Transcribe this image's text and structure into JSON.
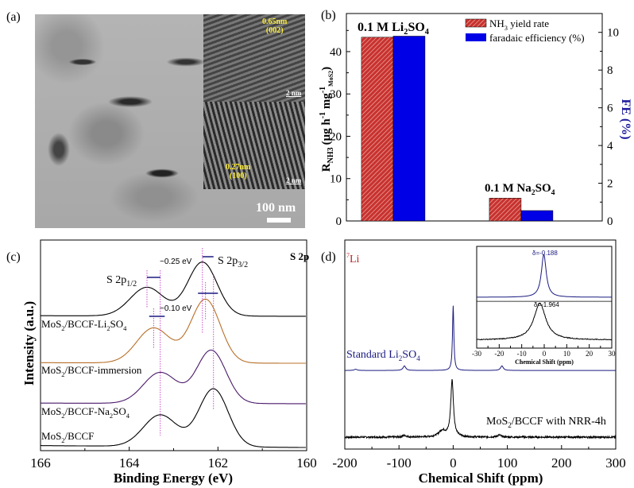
{
  "panel_labels": {
    "a": "(a)",
    "b": "(b)",
    "c": "(c)",
    "d": "(d)"
  },
  "panel_a": {
    "inset_top_spacing": "0.65nm",
    "inset_top_plane": "(002)",
    "inset_top_scale": "2 nm",
    "inset_bottom_spacing": "0.27nm",
    "inset_bottom_plane": "(100)",
    "inset_bottom_scale": "2 nm",
    "scale_bar": "100 nm"
  },
  "chart_data": [
    {
      "type": "bar",
      "panel": "b",
      "categories": [
        "0.1 M Li2SO4",
        "0.1 M Na2SO4"
      ],
      "series": [
        {
          "name": "NH3 yield rate",
          "axis": "left",
          "color": "#c8322f",
          "hatch": true,
          "values": [
            43.4,
            5.4
          ]
        },
        {
          "name": "faradaic efficiency (%)",
          "axis": "right",
          "color": "#0000e6",
          "values": [
            9.8,
            0.55
          ]
        }
      ],
      "ylim": [
        0,
        49
      ],
      "ylim_right": [
        0,
        11
      ],
      "yticks": [
        0,
        10,
        20,
        30,
        40
      ],
      "yticks_right": [
        0,
        2,
        4,
        6,
        8,
        10
      ],
      "ylabel": {
        "main": "R",
        "sub": "NH3",
        "unit": "(μg h",
        "sup1": "-1",
        "mid": " mg",
        "sup2": "-1",
        "sub2": "MoS2",
        "end": ")"
      },
      "ylabel_right": "FE (%)",
      "legend": "top-right"
    },
    {
      "type": "line",
      "panel": "c",
      "xlabel": "Binding Energy (eV)",
      "ylabel": "Intensity (a.u.)",
      "xlim": [
        166,
        160
      ],
      "xticks": [
        166,
        164,
        162,
        160
      ],
      "ylim": [
        0,
        100
      ],
      "title": "S 2p",
      "series": [
        {
          "name": "MoS2/BCCF-Li2SO4",
          "color": "#000000",
          "baseline": 63.8,
          "peaks": [
            [
              162.35,
              25.6,
              0.33
            ],
            [
              163.6,
              13.6,
              0.38
            ]
          ]
        },
        {
          "name": "MoS2/BCCF-immersion",
          "color": "#b8702a",
          "baseline": 41.5,
          "peaks": [
            [
              162.28,
              30.2,
              0.33
            ],
            [
              163.45,
              16.6,
              0.38
            ]
          ]
        },
        {
          "name": "MoS2/BCCF-Na2SO4",
          "color": "#4a1a6a",
          "baseline": 22.3,
          "peaks": [
            [
              162.15,
              25.2,
              0.33
            ],
            [
              163.3,
              14.7,
              0.38
            ]
          ]
        },
        {
          "name": "MoS2/BCCF",
          "color": "#000000",
          "baseline": 1.5,
          "peaks": [
            [
              162.1,
              27.5,
              0.33
            ],
            [
              163.3,
              15,
              0.38
            ]
          ]
        }
      ],
      "annotations": {
        "p12_main": "S 2p",
        "p12_sub": "1/2",
        "p32_main": "S 2p",
        "p32_sub": "3/2",
        "shift1": "~0.25 eV",
        "shift2": "~0.10 eV"
      }
    },
    {
      "type": "line",
      "panel": "d",
      "xlabel": "Chemical Shift (ppm)",
      "xlim": [
        -200,
        300
      ],
      "xticks": [
        -200,
        -100,
        0,
        100,
        200,
        300
      ],
      "ylim": [
        0,
        100
      ],
      "nucleus_sup": "7",
      "nucleus": "Li",
      "series": [
        {
          "name": "Standard Li2SO4",
          "color": "#1a1a80",
          "baseline": 37.6,
          "peaks": [
            [
              0,
              31,
              1.5
            ],
            [
              -90,
              2.2,
              3
            ],
            [
              90,
              2.2,
              3
            ],
            [
              -180,
              0.6,
              3
            ]
          ]
        },
        {
          "name": "MoS2/BCCF with NRR-4h",
          "color": "#000000",
          "baseline": 5.7,
          "peaks": [
            [
              -2,
              27,
              3
            ],
            [
              -20,
              3,
              8
            ],
            [
              85,
              1,
              4
            ],
            [
              -90,
              0.8,
              4
            ]
          ]
        }
      ],
      "inset": {
        "xlabel": "Chemical Shift (ppm)",
        "xlim": [
          -30,
          30
        ],
        "xticks": [
          -30,
          -20,
          -10,
          0,
          10,
          20,
          30
        ],
        "series": [
          {
            "color": "#1a1a80",
            "baseline": 50,
            "peak": -0.188,
            "height": 42,
            "width": 1.3,
            "label": "δ=-0.188"
          },
          {
            "color": "#000000",
            "baseline": 8,
            "peak": -1.964,
            "height": 36,
            "width": 3.2,
            "label": "δ=-1.964"
          }
        ]
      }
    }
  ]
}
